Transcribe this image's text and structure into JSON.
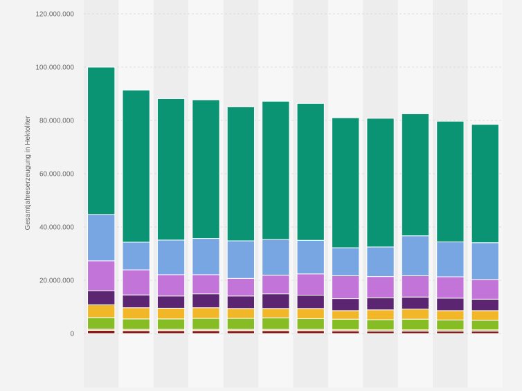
{
  "chart_data": {
    "type": "bar",
    "stacked": true,
    "title": "",
    "xlabel": "",
    "ylabel": "Gesamtjahreserzeugung in Hektoliter",
    "ylim": [
      0,
      120000000
    ],
    "yticks": [
      0,
      20000000,
      40000000,
      60000000,
      80000000,
      100000000,
      120000000
    ],
    "ytick_labels": [
      "0",
      "20.000.000",
      "40.000.000",
      "60.000.000",
      "80.000.000",
      "100.000.000",
      "120.000.000"
    ],
    "grid": true,
    "legend": "none",
    "categories": [
      "",
      "",
      "",
      "",
      "",
      "",
      "",
      "",
      "",
      "",
      "",
      ""
    ],
    "series": [
      {
        "color": "#8b1a1a",
        "values": [
          1200000,
          1100000,
          1100000,
          1100000,
          1100000,
          1100000,
          1100000,
          1000000,
          900000,
          900000,
          900000,
          900000
        ]
      },
      {
        "color": "#e8c56a",
        "values": [
          500000,
          500000,
          500000,
          500000,
          500000,
          500000,
          500000,
          500000,
          500000,
          500000,
          500000,
          500000
        ]
      },
      {
        "color": "#86bc24",
        "values": [
          4300000,
          3900000,
          3900000,
          4100000,
          4100000,
          4300000,
          4000000,
          3900000,
          3800000,
          4000000,
          3700000,
          3600000
        ]
      },
      {
        "color": "#f2b629",
        "values": [
          4800000,
          4200000,
          4000000,
          4000000,
          3700000,
          3500000,
          3800000,
          3200000,
          3700000,
          3800000,
          3500000,
          3600000
        ]
      },
      {
        "color": "#5b2572",
        "values": [
          5300000,
          4800000,
          4600000,
          5200000,
          4700000,
          5500000,
          5000000,
          4500000,
          4500000,
          4500000,
          4700000,
          4300000
        ]
      },
      {
        "color": "#c374d9",
        "values": [
          11200000,
          9400000,
          8000000,
          7200000,
          6600000,
          7000000,
          8000000,
          8600000,
          8000000,
          8000000,
          8000000,
          7400000
        ]
      },
      {
        "color": "#77a6e3",
        "values": [
          17400000,
          10400000,
          13000000,
          13600000,
          14100000,
          13400000,
          12600000,
          10500000,
          11100000,
          15000000,
          13100000,
          13800000
        ]
      },
      {
        "color": "#0a9474",
        "values": [
          55300000,
          57100000,
          53100000,
          52000000,
          50300000,
          51900000,
          51400000,
          48800000,
          48300000,
          45800000,
          45300000,
          44400000
        ]
      }
    ]
  }
}
